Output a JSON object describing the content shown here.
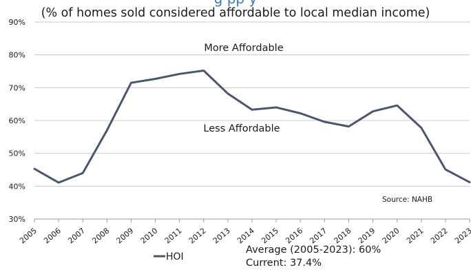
{
  "chart_data": {
    "type": "line",
    "title_partial": "g    pp       y",
    "subtitle": "(% of homes sold considered affordable to local median income)",
    "x": [
      "2005",
      "2006",
      "2007",
      "2008",
      "2009",
      "2010",
      "2011",
      "2012",
      "2013",
      "2014",
      "2015",
      "2016",
      "2017",
      "2018",
      "2019",
      "2020",
      "2021",
      "2022",
      "2023"
    ],
    "series": [
      {
        "name": "HOI",
        "values": [
          45.3,
          41.1,
          44.0,
          57.0,
          71.5,
          72.7,
          74.2,
          75.2,
          68.2,
          63.3,
          64.0,
          62.2,
          59.6,
          58.2,
          62.8,
          64.6,
          57.8,
          45.1,
          41.2
        ]
      }
    ],
    "ylim": [
      30,
      90
    ],
    "yticks": [
      30,
      40,
      50,
      60,
      70,
      80,
      90
    ],
    "ytick_labels": [
      "30%",
      "40%",
      "50%",
      "60%",
      "70%",
      "80%",
      "90%"
    ],
    "annotations": {
      "upper": "More Affordable",
      "lower": "Less Affordable",
      "source": "Source: NAHB"
    },
    "legend": {
      "label": "HOI",
      "placement": "bottom-left"
    },
    "notes": {
      "average": "Average (2005-2023): 60%",
      "current": "Current: 37.4%"
    },
    "colors": {
      "line": "#4a5670",
      "axis": "#bfbfbf",
      "title": "#3a7bbf",
      "text": "#1a1a1a"
    }
  }
}
